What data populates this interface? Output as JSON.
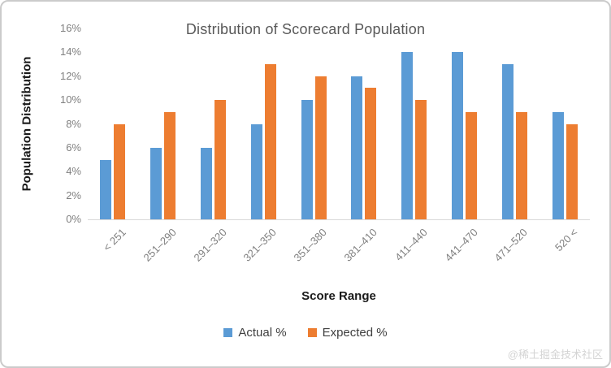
{
  "watermark": "@稀土掘金技术社区",
  "chart_data": {
    "type": "bar",
    "title": "Distribution of Scorecard Population",
    "xlabel": "Score Range",
    "ylabel": "Population Distribution",
    "categories": [
      "< 251",
      "251–290",
      "291–320",
      "321–350",
      "351–380",
      "381–410",
      "411–440",
      "441–470",
      "471–520",
      "520 <"
    ],
    "series": [
      {
        "name": "Actual %",
        "color": "#5B9BD5",
        "values": [
          5,
          6,
          6,
          8,
          10,
          12,
          14,
          14,
          13,
          9
        ]
      },
      {
        "name": "Expected %",
        "color": "#ED7D31",
        "values": [
          8,
          9,
          10,
          13,
          12,
          11,
          10,
          9,
          9,
          8
        ]
      }
    ],
    "ylim": [
      0,
      16
    ],
    "ytick_step": 2,
    "ytick_suffix": "%",
    "grid": false,
    "legend_position": "bottom",
    "axis_line_color": "#d9d9d9"
  }
}
